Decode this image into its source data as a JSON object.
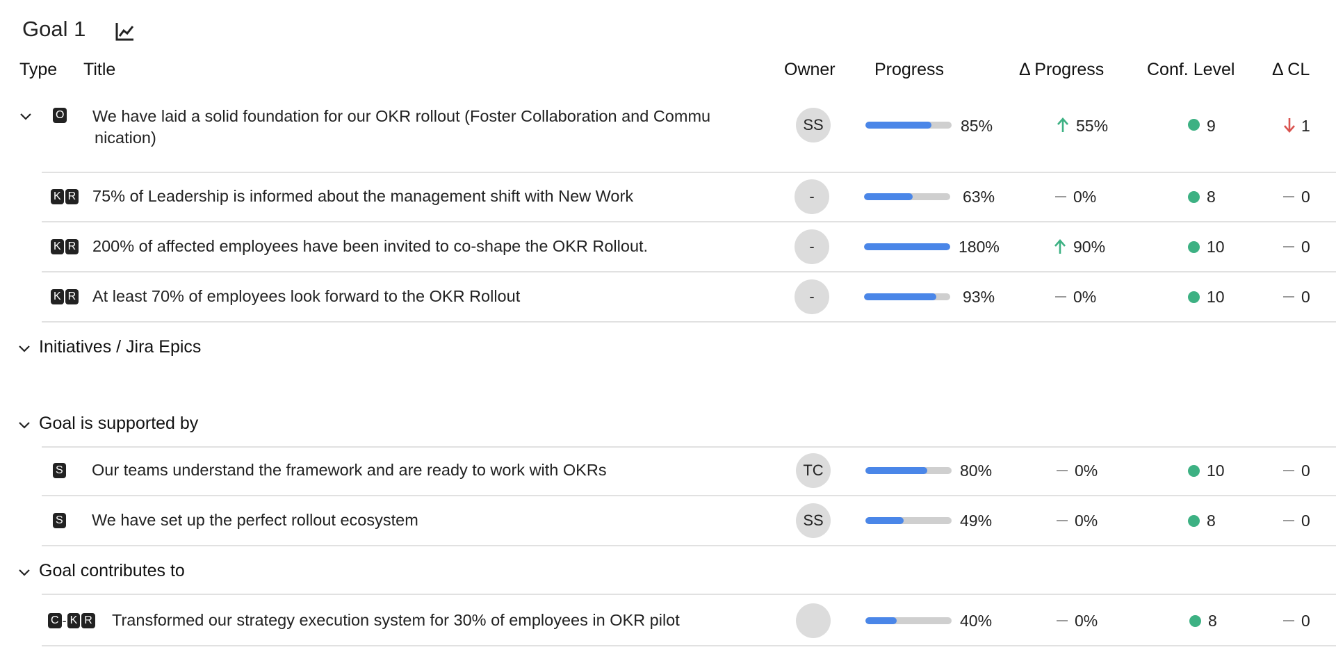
{
  "goal": {
    "title": "Goal 1",
    "chart_icon": "chart-line-icon"
  },
  "columns": {
    "type": "Type",
    "title": "Title",
    "owner": "Owner",
    "progress": "Progress",
    "delta_progress": "Δ Progress",
    "conf_level": "Conf. Level",
    "delta_cl": "Δ CL"
  },
  "objective": {
    "badge": "O",
    "title_line1": "We have laid a solid foundation for our OKR rollout (Foster Collaboration and Commu",
    "title_line2": "nication)",
    "owner": "SS",
    "progress": 85,
    "progress_label": "85%",
    "delta_progress": "55%",
    "delta_progress_dir": "up",
    "conf_level": "9",
    "delta_cl": "1",
    "delta_cl_dir": "down"
  },
  "key_results": [
    {
      "badge1": "K",
      "badge2": "R",
      "title": "75% of Leadership is informed about the management shift with New Work",
      "owner": "-",
      "progress": 63,
      "progress_label": "63%",
      "delta_progress": "0%",
      "delta_progress_dir": "none",
      "conf_level": "8",
      "delta_cl": "0"
    },
    {
      "badge1": "K",
      "badge2": "R",
      "title": "200% of affected employees have been invited to co-shape the OKR Rollout.",
      "owner": "-",
      "progress": 180,
      "progress_label": "180%",
      "delta_progress": "90%",
      "delta_progress_dir": "up",
      "conf_level": "10",
      "delta_cl": "0"
    },
    {
      "badge1": "K",
      "badge2": "R",
      "title": "At least 70% of employees look forward to the OKR Rollout",
      "owner": "-",
      "progress": 93,
      "progress_label": "93%",
      "delta_progress": "0%",
      "delta_progress_dir": "none",
      "conf_level": "10",
      "delta_cl": "0"
    }
  ],
  "sections": {
    "initiatives": "Initiatives / Jira Epics",
    "supported_by": "Goal is supported by",
    "contributes_to": "Goal contributes to"
  },
  "supported_by": [
    {
      "badge": "S",
      "title": "Our teams understand the framework and are ready to work with OKRs",
      "owner": "TC",
      "progress": 80,
      "progress_label": "80%",
      "delta_progress": "0%",
      "conf_level": "10",
      "delta_cl": "0"
    },
    {
      "badge": "S",
      "title": "We have set up the perfect rollout ecosystem",
      "owner": "SS",
      "progress": 49,
      "progress_label": "49%",
      "delta_progress": "0%",
      "conf_level": "8",
      "delta_cl": "0"
    }
  ],
  "contributes_to": [
    {
      "badge1": "C",
      "badge_sep": "-",
      "badge2": "K",
      "badge3": "R",
      "title": "Transformed our strategy execution system for 30% of employees in OKR pilot",
      "owner": "",
      "progress": 40,
      "progress_label": "40%",
      "delta_progress": "0%",
      "conf_level": "8",
      "delta_cl": "0"
    }
  ],
  "colors": {
    "progress_fill": "#4a86e8",
    "progress_track": "#cfcfcf",
    "up_arrow": "#3db183",
    "down_arrow": "#d9534f",
    "conf_dot": "#3db183"
  }
}
